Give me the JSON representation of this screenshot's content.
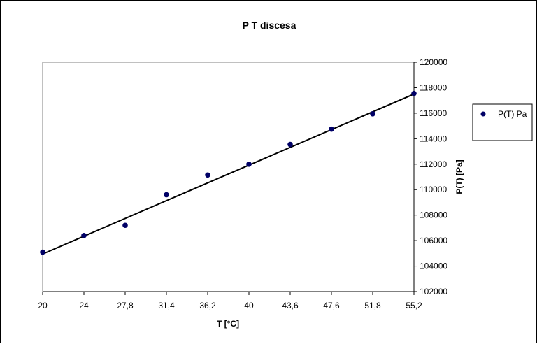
{
  "chart_data": {
    "type": "scatter",
    "title": "P T discesa",
    "xlabel": "T [°C]",
    "ylabel": "P(T) [Pa]",
    "categories": [
      "20",
      "24",
      "27,8",
      "31,4",
      "36,2",
      "40",
      "43,6",
      "47,6",
      "51,8",
      "55,2"
    ],
    "ylim": [
      102000,
      120000
    ],
    "yticks": [
      "102000",
      "104000",
      "106000",
      "108000",
      "110000",
      "112000",
      "114000",
      "116000",
      "118000",
      "120000"
    ],
    "grid": false,
    "legend_position": "right",
    "series": [
      {
        "name": "P(T) Pa",
        "color": "#000066",
        "values": [
          105100,
          106400,
          107200,
          109600,
          111150,
          112000,
          113550,
          114750,
          115950,
          117550
        ]
      }
    ],
    "trendline": {
      "type": "linear",
      "color": "#000000",
      "start": 104950,
      "end": 117500
    }
  }
}
